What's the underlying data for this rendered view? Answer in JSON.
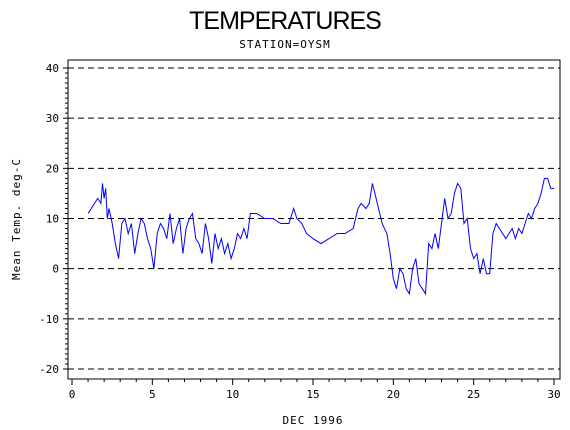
{
  "chart_data": {
    "type": "line",
    "title": "TEMPERATURES",
    "subtitle": "STATION=OYSM",
    "xlabel": "DEC 1996",
    "ylabel": "Mean Temp. deg-C",
    "xlim": [
      0,
      30
    ],
    "ylim": [
      -20,
      40
    ],
    "grid": "horizontal-dashed",
    "x_ticks": [
      0,
      5,
      10,
      15,
      20,
      25,
      30
    ],
    "y_ticks": [
      -20,
      -10,
      0,
      10,
      20,
      30,
      40
    ],
    "series": [
      {
        "color": "#0000ff",
        "x": [
          1.0,
          1.2,
          1.4,
          1.6,
          1.8,
          1.9,
          2.0,
          2.1,
          2.2,
          2.3,
          2.5,
          2.7,
          2.9,
          3.1,
          3.3,
          3.5,
          3.7,
          3.9,
          4.1,
          4.3,
          4.5,
          4.7,
          4.9,
          5.1,
          5.3,
          5.5,
          5.7,
          5.9,
          6.1,
          6.3,
          6.5,
          6.7,
          6.9,
          7.1,
          7.3,
          7.5,
          7.7,
          7.9,
          8.1,
          8.3,
          8.5,
          8.7,
          8.9,
          9.1,
          9.3,
          9.5,
          9.7,
          9.9,
          10.1,
          10.3,
          10.5,
          10.7,
          10.9,
          11.1,
          11.3,
          11.5,
          12.0,
          12.5,
          13.0,
          13.5,
          13.8,
          14.0,
          14.3,
          14.6,
          15.0,
          15.5,
          16.0,
          16.5,
          17.0,
          17.5,
          17.8,
          18.0,
          18.3,
          18.5,
          18.7,
          19.0,
          19.3,
          19.6,
          19.8,
          20.0,
          20.2,
          20.4,
          20.6,
          20.8,
          21.0,
          21.2,
          21.4,
          21.6,
          21.8,
          22.0,
          22.2,
          22.4,
          22.6,
          22.8,
          23.0,
          23.2,
          23.4,
          23.6,
          23.8,
          24.0,
          24.2,
          24.4,
          24.6,
          24.8,
          25.0,
          25.2,
          25.4,
          25.6,
          25.8,
          26.0,
          26.2,
          26.4,
          26.6,
          26.8,
          27.0,
          27.2,
          27.4,
          27.6,
          27.8,
          28.0,
          28.2,
          28.4,
          28.6,
          28.8,
          29.0,
          29.2,
          29.4,
          29.6,
          29.8,
          30.0
        ],
        "y": [
          11,
          12,
          13,
          14,
          13,
          17,
          14,
          16,
          10,
          12,
          9,
          5,
          2,
          9,
          10,
          7,
          9,
          3,
          7,
          10,
          9,
          6,
          4,
          0,
          7,
          9,
          8,
          6,
          11,
          5,
          8,
          10,
          3,
          8,
          10,
          11,
          6,
          5,
          3,
          9,
          6,
          1,
          7,
          4,
          6,
          3,
          5,
          2,
          4,
          7,
          6,
          8,
          6,
          11,
          11,
          11,
          10,
          10,
          9,
          9,
          12,
          10,
          9,
          7,
          6,
          5,
          6,
          7,
          7,
          8,
          12,
          13,
          12,
          13,
          17,
          13,
          9,
          7,
          3,
          -2,
          -4,
          0,
          -1,
          -4,
          -5,
          0,
          2,
          -3,
          -4,
          -5,
          5,
          4,
          7,
          4,
          9,
          14,
          10,
          11,
          15,
          17,
          16,
          9,
          10,
          4,
          2,
          3,
          -1,
          2,
          -1,
          -1,
          7,
          9,
          8,
          7,
          6,
          7,
          8,
          6,
          8,
          7,
          9,
          11,
          10,
          12,
          13,
          15,
          18,
          18,
          16,
          16
        ]
      }
    ]
  }
}
